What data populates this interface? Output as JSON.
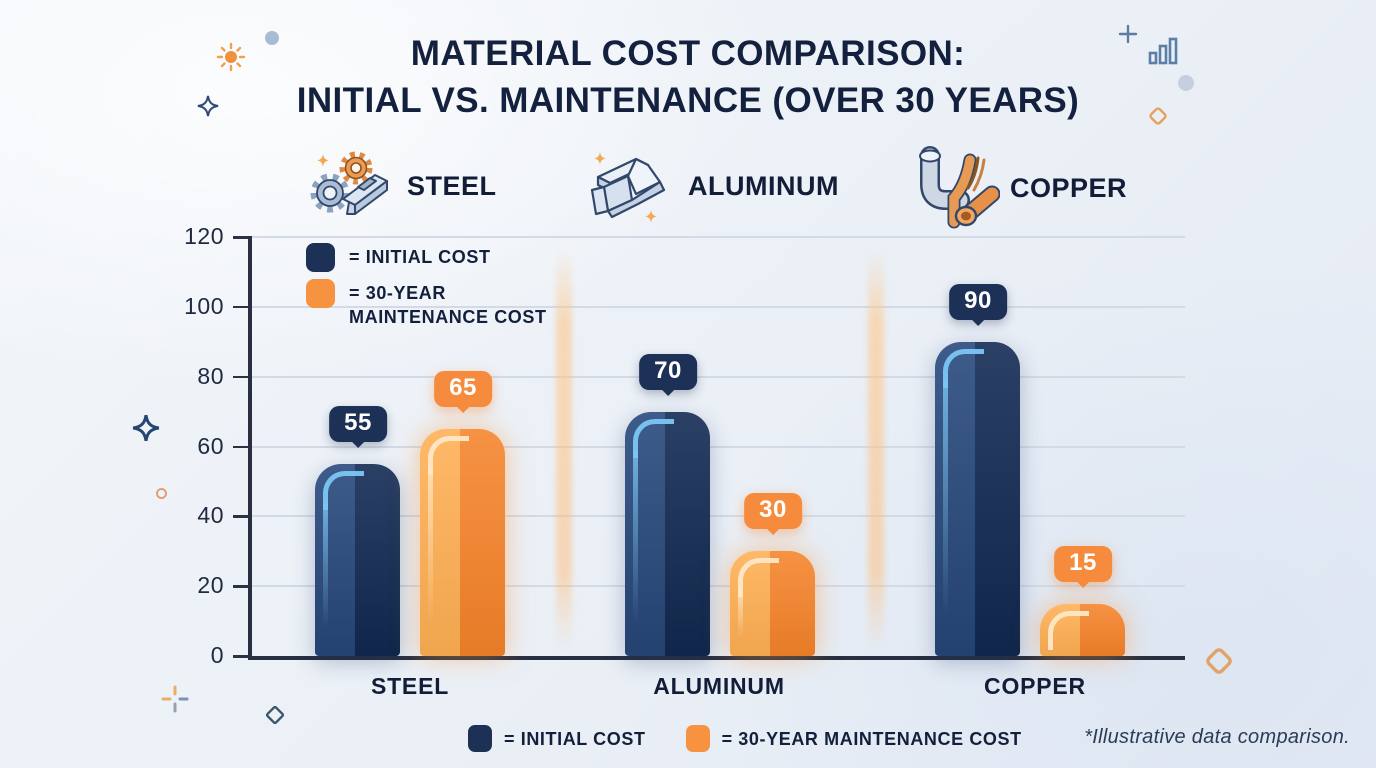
{
  "title": {
    "line1": "MATERIAL COST COMPARISON:",
    "line2": "INITIAL VS. MAINTENANCE (OVER 30 YEARS)"
  },
  "materials": [
    {
      "label": "STEEL",
      "icon": "steel-gears-beam-icon"
    },
    {
      "label": "ALUMINUM",
      "icon": "aluminum-ibeam-icon"
    },
    {
      "label": "COPPER",
      "icon": "copper-pipes-icon"
    }
  ],
  "chart_data": {
    "type": "bar",
    "categories": [
      "STEEL",
      "ALUMINUM",
      "COPPER"
    ],
    "series": [
      {
        "name": "INITIAL COST",
        "color": "#1d3156",
        "values": [
          55,
          70,
          90
        ]
      },
      {
        "name": "30-YEAR MAINTENANCE COST",
        "color": "#f68b3d",
        "values": [
          65,
          30,
          15
        ]
      }
    ],
    "ylim": [
      0,
      120
    ],
    "yticks": [
      "120",
      "100",
      "80",
      "60",
      "40",
      "20",
      "0"
    ],
    "grid": true,
    "legend_position": "inside-top-left and below-axis",
    "data_labels": true
  },
  "legend_top": {
    "initial": "= INITIAL COST",
    "maintenance_line1": "= 30-YEAR",
    "maintenance_line2": "MAINTENANCE COST"
  },
  "legend_bottom": {
    "initial": "= INITIAL COST",
    "maintenance": "= 30-YEAR MAINTENANCE COST"
  },
  "footnote": "*Illustrative data comparison.",
  "colors": {
    "initial_bar_light": "#28497d",
    "initial_bar_dark": "#122a52",
    "maintenance_bar_light": "#ffaf53",
    "maintenance_bar_dark": "#f5832a",
    "title_text": "#14213e",
    "axis": "#272f40",
    "gridline": "#d3dae5",
    "background": "#ecf1f7"
  }
}
